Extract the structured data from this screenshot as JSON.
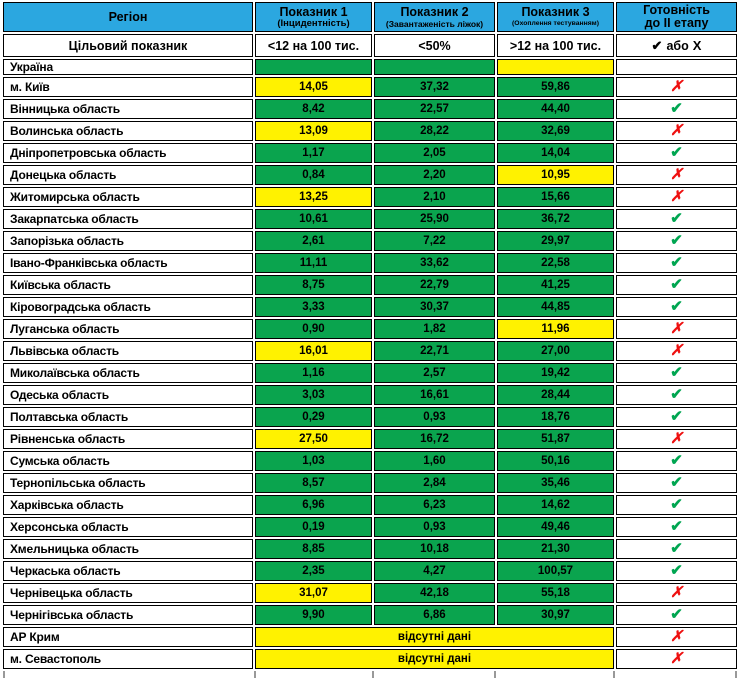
{
  "colors": {
    "header_bg": "#2BA7E0",
    "cell_green": "#0AA44E",
    "cell_yellow": "#FFF200",
    "cell_gray": "#BFBFBF",
    "check_green": "#00A651",
    "cross_red": "#EE1010",
    "border": "#000000"
  },
  "icons": {
    "check": "✔",
    "cross": "✗"
  },
  "chart_data": {
    "type": "table",
    "columns": [
      {
        "title": "Регіон"
      },
      {
        "title": "Показник 1",
        "subtitle": "(Інцидентність)"
      },
      {
        "title": "Показник 2",
        "subtitle": "(Завантаженість ліжок)"
      },
      {
        "title": "Показник 3",
        "subtitle": "(Охоплення тестуванням)"
      },
      {
        "title": "Готовність",
        "title2": "до II етапу"
      }
    ],
    "target_row": {
      "label": "Цільовий показник",
      "values": [
        "<12 на 100 тис.",
        "<50%",
        ">12 на 100 тис."
      ],
      "readiness_check": "✔",
      "readiness_text": "або",
      "readiness_cross": "Х"
    },
    "no_data_text": "відсутні дані",
    "rows": [
      {
        "region": "Україна",
        "values": [
          "",
          "",
          ""
        ],
        "fills": [
          "green",
          "green",
          "yellow"
        ],
        "status": "none",
        "status_fill": "gray"
      },
      {
        "region": "м. Київ",
        "values": [
          "14,05",
          "37,32",
          "59,86"
        ],
        "fills": [
          "yellow",
          "green",
          "green"
        ],
        "status": "no"
      },
      {
        "region": "Вінницька область",
        "values": [
          "8,42",
          "22,57",
          "44,40"
        ],
        "fills": [
          "green",
          "green",
          "green"
        ],
        "status": "yes"
      },
      {
        "region": "Волинська область",
        "values": [
          "13,09",
          "28,22",
          "32,69"
        ],
        "fills": [
          "yellow",
          "green",
          "green"
        ],
        "status": "no"
      },
      {
        "region": "Дніпропетровська область",
        "values": [
          "1,17",
          "2,05",
          "14,04"
        ],
        "fills": [
          "green",
          "green",
          "green"
        ],
        "status": "yes"
      },
      {
        "region": "Донецька область",
        "values": [
          "0,84",
          "2,20",
          "10,95"
        ],
        "fills": [
          "green",
          "green",
          "yellow"
        ],
        "status": "no"
      },
      {
        "region": "Житомирська область",
        "values": [
          "13,25",
          "2,10",
          "15,66"
        ],
        "fills": [
          "yellow",
          "green",
          "green"
        ],
        "status": "no"
      },
      {
        "region": "Закарпатська область",
        "values": [
          "10,61",
          "25,90",
          "36,72"
        ],
        "fills": [
          "green",
          "green",
          "green"
        ],
        "status": "yes"
      },
      {
        "region": "Запорізька область",
        "values": [
          "2,61",
          "7,22",
          "29,97"
        ],
        "fills": [
          "green",
          "green",
          "green"
        ],
        "status": "yes"
      },
      {
        "region": "Івано-Франківська область",
        "values": [
          "11,11",
          "33,62",
          "22,58"
        ],
        "fills": [
          "green",
          "green",
          "green"
        ],
        "status": "yes"
      },
      {
        "region": "Київська область",
        "values": [
          "8,75",
          "22,79",
          "41,25"
        ],
        "fills": [
          "green",
          "green",
          "green"
        ],
        "status": "yes"
      },
      {
        "region": "Кіровоградська область",
        "values": [
          "3,33",
          "30,37",
          "44,85"
        ],
        "fills": [
          "green",
          "green",
          "green"
        ],
        "status": "yes"
      },
      {
        "region": "Луганська область",
        "values": [
          "0,90",
          "1,82",
          "11,96"
        ],
        "fills": [
          "green",
          "green",
          "yellow"
        ],
        "status": "no"
      },
      {
        "region": "Львівська область",
        "values": [
          "16,01",
          "22,71",
          "27,00"
        ],
        "fills": [
          "yellow",
          "green",
          "green"
        ],
        "status": "no"
      },
      {
        "region": "Миколаївська область",
        "values": [
          "1,16",
          "2,57",
          "19,42"
        ],
        "fills": [
          "green",
          "green",
          "green"
        ],
        "status": "yes"
      },
      {
        "region": "Одеська область",
        "values": [
          "3,03",
          "16,61",
          "28,44"
        ],
        "fills": [
          "green",
          "green",
          "green"
        ],
        "status": "yes"
      },
      {
        "region": "Полтавська область",
        "values": [
          "0,29",
          "0,93",
          "18,76"
        ],
        "fills": [
          "green",
          "green",
          "green"
        ],
        "status": "yes"
      },
      {
        "region": "Рівненська область",
        "values": [
          "27,50",
          "16,72",
          "51,87"
        ],
        "fills": [
          "yellow",
          "green",
          "green"
        ],
        "status": "no"
      },
      {
        "region": "Сумська область",
        "values": [
          "1,03",
          "1,60",
          "50,16"
        ],
        "fills": [
          "green",
          "green",
          "green"
        ],
        "status": "yes"
      },
      {
        "region": "Тернопільська область",
        "values": [
          "8,57",
          "2,84",
          "35,46"
        ],
        "fills": [
          "green",
          "green",
          "green"
        ],
        "status": "yes"
      },
      {
        "region": "Харківська область",
        "values": [
          "6,96",
          "6,23",
          "14,62"
        ],
        "fills": [
          "green",
          "green",
          "green"
        ],
        "status": "yes"
      },
      {
        "region": "Херсонська область",
        "values": [
          "0,19",
          "0,93",
          "49,46"
        ],
        "fills": [
          "green",
          "green",
          "green"
        ],
        "status": "yes"
      },
      {
        "region": "Хмельницька область",
        "values": [
          "8,85",
          "10,18",
          "21,30"
        ],
        "fills": [
          "green",
          "green",
          "green"
        ],
        "status": "yes"
      },
      {
        "region": "Черкаська область",
        "values": [
          "2,35",
          "4,27",
          "100,57"
        ],
        "fills": [
          "green",
          "green",
          "green"
        ],
        "status": "yes"
      },
      {
        "region": "Чернівецька область",
        "values": [
          "31,07",
          "42,18",
          "55,18"
        ],
        "fills": [
          "yellow",
          "green",
          "green"
        ],
        "status": "no"
      },
      {
        "region": "Чернігівська область",
        "values": [
          "9,90",
          "6,86",
          "30,97"
        ],
        "fills": [
          "green",
          "green",
          "green"
        ],
        "status": "yes"
      },
      {
        "region": "АР Крим",
        "no_data": true,
        "status": "no"
      },
      {
        "region": "м. Севастополь",
        "no_data": true,
        "status": "no"
      }
    ]
  }
}
